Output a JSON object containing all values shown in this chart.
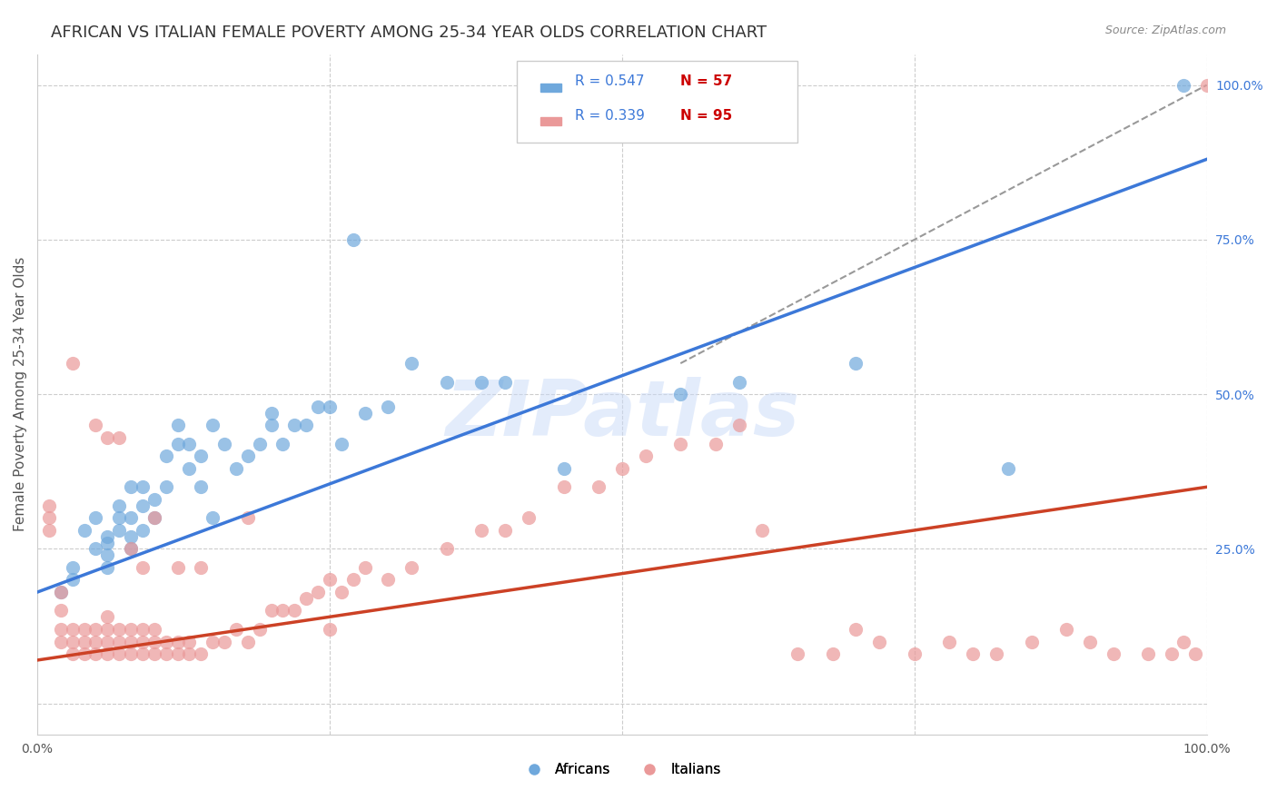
{
  "title": "AFRICAN VS ITALIAN FEMALE POVERTY AMONG 25-34 YEAR OLDS CORRELATION CHART",
  "source": "Source: ZipAtlas.com",
  "xlabel": "",
  "ylabel": "Female Poverty Among 25-34 Year Olds",
  "xlim": [
    0,
    1
  ],
  "ylim": [
    -0.05,
    1.05
  ],
  "x_ticks": [
    0,
    0.25,
    0.5,
    0.75,
    1.0
  ],
  "x_tick_labels": [
    "0.0%",
    "",
    "",
    "",
    "100.0%"
  ],
  "y_ticks_right": [
    0.0,
    0.25,
    0.5,
    0.75,
    1.0
  ],
  "y_tick_labels_right": [
    "",
    "25.0%",
    "50.0%",
    "75.0%",
    "100.0%"
  ],
  "african_color": "#6fa8dc",
  "italian_color": "#ea9999",
  "african_line_color": "#3c78d8",
  "italian_line_color": "#cc4125",
  "african_R": 0.547,
  "african_N": 57,
  "italian_R": 0.339,
  "italian_N": 95,
  "background_color": "#ffffff",
  "grid_color": "#cccccc",
  "watermark_text": "ZIPatlas",
  "watermark_color": "#c9daf8",
  "legend_R_color": "#3c78d8",
  "legend_N_color": "#cc0000",
  "title_fontsize": 13,
  "axis_label_fontsize": 11,
  "tick_fontsize": 10,
  "african_scatter_x": [
    0.02,
    0.03,
    0.03,
    0.04,
    0.05,
    0.05,
    0.06,
    0.06,
    0.06,
    0.06,
    0.07,
    0.07,
    0.07,
    0.08,
    0.08,
    0.08,
    0.08,
    0.09,
    0.09,
    0.09,
    0.1,
    0.1,
    0.11,
    0.11,
    0.12,
    0.12,
    0.13,
    0.13,
    0.14,
    0.14,
    0.15,
    0.15,
    0.16,
    0.17,
    0.18,
    0.19,
    0.2,
    0.2,
    0.21,
    0.22,
    0.23,
    0.24,
    0.25,
    0.26,
    0.27,
    0.28,
    0.3,
    0.32,
    0.35,
    0.38,
    0.4,
    0.45,
    0.55,
    0.6,
    0.7,
    0.83,
    0.98
  ],
  "african_scatter_y": [
    0.18,
    0.2,
    0.22,
    0.28,
    0.25,
    0.3,
    0.22,
    0.24,
    0.26,
    0.27,
    0.28,
    0.3,
    0.32,
    0.25,
    0.27,
    0.3,
    0.35,
    0.28,
    0.32,
    0.35,
    0.3,
    0.33,
    0.35,
    0.4,
    0.42,
    0.45,
    0.38,
    0.42,
    0.35,
    0.4,
    0.3,
    0.45,
    0.42,
    0.38,
    0.4,
    0.42,
    0.45,
    0.47,
    0.42,
    0.45,
    0.45,
    0.48,
    0.48,
    0.42,
    0.75,
    0.47,
    0.48,
    0.55,
    0.52,
    0.52,
    0.52,
    0.38,
    0.5,
    0.52,
    0.55,
    0.38,
    1.0
  ],
  "italian_scatter_x": [
    0.01,
    0.01,
    0.01,
    0.02,
    0.02,
    0.02,
    0.02,
    0.03,
    0.03,
    0.03,
    0.04,
    0.04,
    0.04,
    0.05,
    0.05,
    0.05,
    0.06,
    0.06,
    0.06,
    0.06,
    0.07,
    0.07,
    0.07,
    0.08,
    0.08,
    0.08,
    0.09,
    0.09,
    0.09,
    0.1,
    0.1,
    0.1,
    0.11,
    0.11,
    0.12,
    0.12,
    0.13,
    0.13,
    0.14,
    0.15,
    0.16,
    0.17,
    0.18,
    0.19,
    0.2,
    0.21,
    0.22,
    0.23,
    0.24,
    0.25,
    0.26,
    0.27,
    0.28,
    0.3,
    0.32,
    0.35,
    0.38,
    0.4,
    0.42,
    0.45,
    0.48,
    0.5,
    0.52,
    0.55,
    0.58,
    0.6,
    0.62,
    0.65,
    0.68,
    0.7,
    0.72,
    0.75,
    0.78,
    0.8,
    0.82,
    0.85,
    0.88,
    0.9,
    0.92,
    0.95,
    0.97,
    0.98,
    0.99,
    1.0,
    0.03,
    0.05,
    0.06,
    0.07,
    0.08,
    0.09,
    0.1,
    0.12,
    0.14,
    0.18,
    0.25
  ],
  "italian_scatter_y": [
    0.28,
    0.3,
    0.32,
    0.1,
    0.12,
    0.15,
    0.18,
    0.08,
    0.1,
    0.12,
    0.08,
    0.1,
    0.12,
    0.08,
    0.1,
    0.12,
    0.08,
    0.1,
    0.12,
    0.14,
    0.08,
    0.1,
    0.12,
    0.08,
    0.1,
    0.12,
    0.08,
    0.1,
    0.12,
    0.08,
    0.1,
    0.12,
    0.08,
    0.1,
    0.08,
    0.1,
    0.08,
    0.1,
    0.08,
    0.1,
    0.1,
    0.12,
    0.1,
    0.12,
    0.15,
    0.15,
    0.15,
    0.17,
    0.18,
    0.2,
    0.18,
    0.2,
    0.22,
    0.2,
    0.22,
    0.25,
    0.28,
    0.28,
    0.3,
    0.35,
    0.35,
    0.38,
    0.4,
    0.42,
    0.42,
    0.45,
    0.28,
    0.08,
    0.08,
    0.12,
    0.1,
    0.08,
    0.1,
    0.08,
    0.08,
    0.1,
    0.12,
    0.1,
    0.08,
    0.08,
    0.08,
    0.1,
    0.08,
    1.0,
    0.55,
    0.45,
    0.43,
    0.43,
    0.25,
    0.22,
    0.3,
    0.22,
    0.22,
    0.3,
    0.12
  ]
}
